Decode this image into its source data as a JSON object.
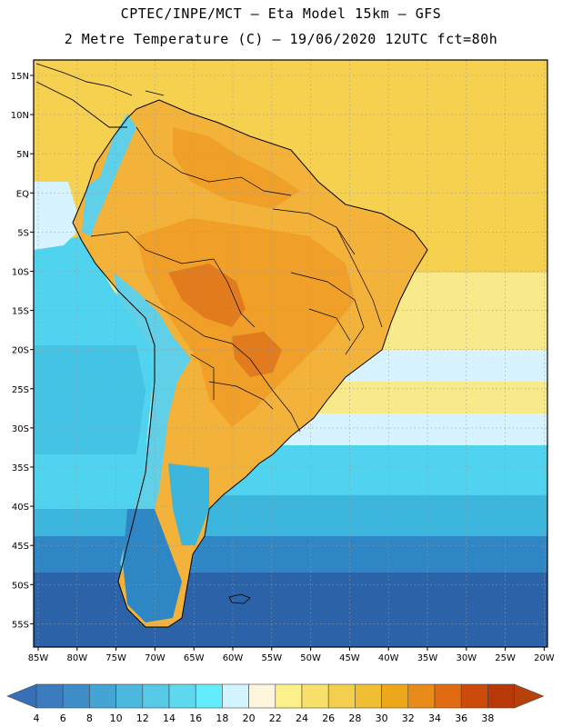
{
  "header": {
    "line1": "CPTEC/INPE/MCT –  Eta Model 15km – GFS",
    "line2": "2 Metre Temperature (C) – 19/06/2020 12UTC fct=80h"
  },
  "map": {
    "lat_ticks": [
      "15N",
      "10N",
      "5N",
      "EQ",
      "5S",
      "10S",
      "15S",
      "20S",
      "25S",
      "30S",
      "35S",
      "40S",
      "45S",
      "50S",
      "55S"
    ],
    "lon_ticks": [
      "85W",
      "80W",
      "75W",
      "70W",
      "65W",
      "60W",
      "55W",
      "50W",
      "45W",
      "40W",
      "35W",
      "30W",
      "25W",
      "20W"
    ],
    "colors": {
      "ocean_warm": "#f6d04f",
      "ocean_mid": "#f8e98a",
      "ocean_cool": "#d6f3ff",
      "ocean_cold1": "#4fd3ef",
      "ocean_cold2": "#3cb6dc",
      "ocean_cold3": "#2f86c4",
      "ocean_cold4": "#2b62a8",
      "land_hot": "#f0a028",
      "land_warm": "#f3b23a",
      "land_very_hot": "#e27b1e",
      "andes": "#5fd0e8"
    }
  },
  "colorbar": {
    "labels": [
      "4",
      "6",
      "8",
      "10",
      "12",
      "14",
      "16",
      "18",
      "20",
      "22",
      "24",
      "26",
      "28",
      "30",
      "32",
      "34",
      "36",
      "38"
    ],
    "colors": [
      "#3d7bbf",
      "#3f8dc8",
      "#44a4d4",
      "#4cb8de",
      "#55c9e6",
      "#5ed8ee",
      "#63ecfb",
      "#d2f4ff",
      "#fdf6dc",
      "#fbf08a",
      "#f8e06a",
      "#f4cf4f",
      "#f0be33",
      "#eda71b",
      "#e88b1b",
      "#e06b12",
      "#cc4a0a",
      "#b9380a"
    ],
    "left_arrow_color": "#3870b8",
    "right_arrow_color": "#b8410a"
  }
}
